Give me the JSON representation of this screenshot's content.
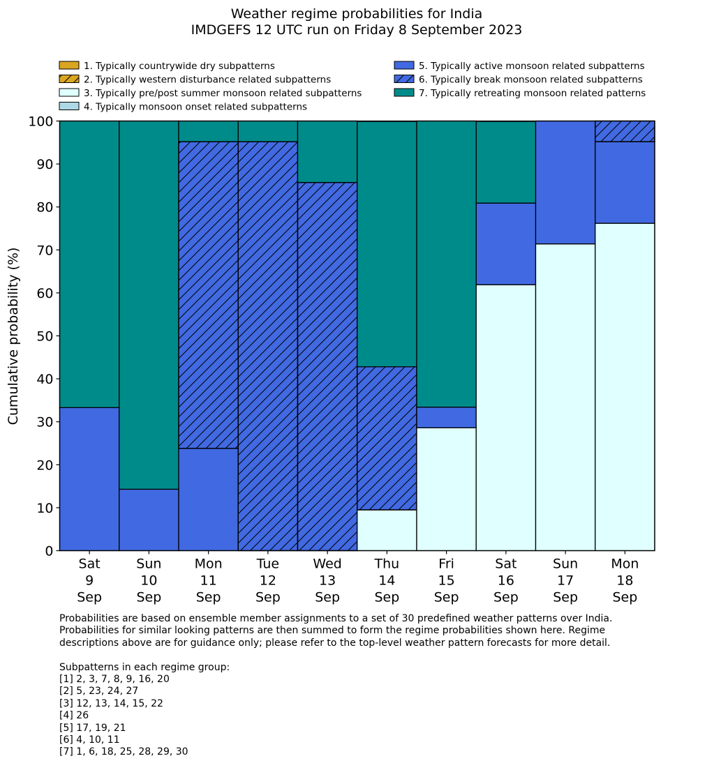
{
  "chart_data": {
    "type": "bar",
    "stacked": true,
    "title": "Weather regime probabilities for India",
    "subtitle": "IMDGEFS 12 UTC run on Friday 8 September 2023",
    "ylabel": "Cumulative probability (%)",
    "xlabel": "",
    "ylim": [
      0,
      100
    ],
    "yticks": [
      0,
      10,
      20,
      30,
      40,
      50,
      60,
      70,
      80,
      90,
      100
    ],
    "grid": false,
    "legend_position": "top",
    "categories": [
      [
        "Sat",
        "9",
        "Sep"
      ],
      [
        "Sun",
        "10",
        "Sep"
      ],
      [
        "Mon",
        "11",
        "Sep"
      ],
      [
        "Tue",
        "12",
        "Sep"
      ],
      [
        "Wed",
        "13",
        "Sep"
      ],
      [
        "Thu",
        "14",
        "Sep"
      ],
      [
        "Fri",
        "15",
        "Sep"
      ],
      [
        "Sat",
        "16",
        "Sep"
      ],
      [
        "Sun",
        "17",
        "Sep"
      ],
      [
        "Mon",
        "18",
        "Sep"
      ]
    ],
    "series": [
      {
        "name": "1. Typically countrywide dry subpatterns",
        "color": "#daa520",
        "hatch": false,
        "values": [
          0,
          0,
          0,
          0,
          0,
          0,
          0,
          0,
          0,
          0
        ]
      },
      {
        "name": "2. Typically western disturbance related subpatterns",
        "color": "#daa520",
        "hatch": true,
        "values": [
          0,
          0,
          0,
          0,
          0,
          0,
          0,
          0,
          0,
          0
        ]
      },
      {
        "name": "3. Typically pre/post summer monsoon related subpatterns",
        "color": "#e0ffff",
        "hatch": false,
        "values": [
          0,
          0,
          0,
          0,
          0,
          9.5,
          28.6,
          61.9,
          71.4,
          76.2
        ]
      },
      {
        "name": "4. Typically monsoon onset related subpatterns",
        "color": "#add8e6",
        "hatch": false,
        "values": [
          0,
          0,
          0,
          0,
          0,
          0,
          0,
          0,
          0,
          0
        ]
      },
      {
        "name": "5. Typically active monsoon related subpatterns",
        "color": "#4169e1",
        "hatch": false,
        "values": [
          33.3,
          14.3,
          23.8,
          0,
          0,
          0,
          4.8,
          19.0,
          28.6,
          19.0
        ]
      },
      {
        "name": "6. Typically break monsoon related subpatterns",
        "color": "#4169e1",
        "hatch": true,
        "values": [
          0,
          0,
          71.4,
          95.2,
          85.7,
          33.3,
          0,
          0,
          0,
          4.8
        ]
      },
      {
        "name": "7. Typically retreating monsoon related patterns",
        "color": "#008b8b",
        "hatch": false,
        "values": [
          66.7,
          85.7,
          4.8,
          4.8,
          14.3,
          57.1,
          66.7,
          19.0,
          0,
          0
        ]
      }
    ]
  },
  "notes": {
    "line1": "Probabilities are based on ensemble member assignments to a set of 30 predefined weather patterns over India.",
    "line2": "Probabilities for similar looking patterns are then summed to form the regime probabilities shown here. Regime",
    "line3": "descriptions above are for guidance only; please refer to the top-level weather pattern forecasts for more detail.",
    "groups_heading": "Subpatterns in each regime group:",
    "groups": [
      "[1] 2, 3, 7, 8, 9, 16, 20",
      "[2] 5, 23, 24, 27",
      "[3] 12, 13, 14, 15, 22",
      "[4] 26",
      "[5] 17, 19, 21",
      "[6] 4, 10, 11",
      "[7] 1, 6, 18, 25, 28, 29, 30"
    ]
  }
}
